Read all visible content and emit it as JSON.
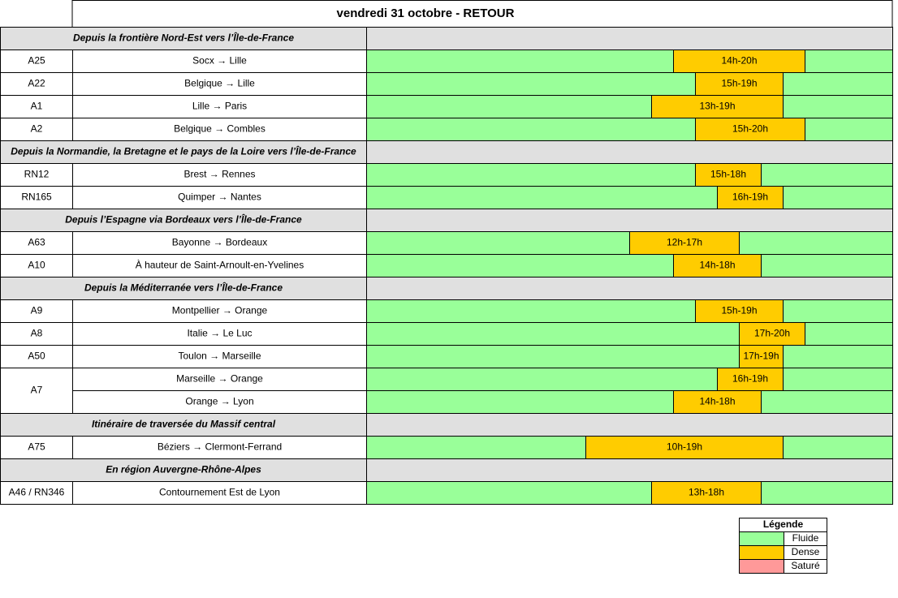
{
  "title": "vendredi 31 octobre  - RETOUR",
  "timeline": [
    0,
    24
  ],
  "sections": [
    {
      "title": "Depuis la frontière Nord-Est vers l’Île-de-France",
      "routes": [
        {
          "road": "A25",
          "stretches": [
            {
              "name": "Socx → Lille",
              "label": "14h-20h",
              "hours": [
                14,
                20
              ]
            }
          ]
        },
        {
          "road": "A22",
          "stretches": [
            {
              "name": "Belgique → Lille",
              "label": "15h-19h",
              "hours": [
                15,
                19
              ]
            }
          ]
        },
        {
          "road": "A1",
          "stretches": [
            {
              "name": "Lille → Paris",
              "label": "13h-19h",
              "hours": [
                13,
                19
              ]
            }
          ]
        },
        {
          "road": "A2",
          "stretches": [
            {
              "name": "Belgique → Combles",
              "label": "15h-20h",
              "hours": [
                15,
                20
              ]
            }
          ]
        }
      ]
    },
    {
      "title": "Depuis la Normandie, la Bretagne et le pays de la Loire vers l’Île-de-France",
      "routes": [
        {
          "road": "RN12",
          "stretches": [
            {
              "name": "Brest → Rennes",
              "label": "15h-18h",
              "hours": [
                15,
                18
              ]
            }
          ]
        },
        {
          "road": "RN165",
          "stretches": [
            {
              "name": "Quimper → Nantes",
              "label": "16h-19h",
              "hours": [
                16,
                19
              ]
            }
          ]
        }
      ]
    },
    {
      "title": "Depuis l’Espagne via Bordeaux vers l’Île-de-France",
      "routes": [
        {
          "road": "A63",
          "stretches": [
            {
              "name": "Bayonne → Bordeaux",
              "label": "12h-17h",
              "hours": [
                12,
                17
              ]
            }
          ]
        },
        {
          "road": "A10",
          "stretches": [
            {
              "name": "À hauteur de Saint-Arnoult-en-Yvelines",
              "label": "14h-18h",
              "hours": [
                14,
                18
              ]
            }
          ]
        }
      ]
    },
    {
      "title": "Depuis la Méditerranée vers l’Île-de-France",
      "routes": [
        {
          "road": "A9",
          "stretches": [
            {
              "name": "Montpellier → Orange",
              "label": "15h-19h",
              "hours": [
                15,
                19
              ]
            }
          ]
        },
        {
          "road": "A8",
          "stretches": [
            {
              "name": "Italie → Le Luc",
              "label": "17h-20h",
              "hours": [
                17,
                20
              ]
            }
          ]
        },
        {
          "road": "A50",
          "stretches": [
            {
              "name": "Toulon → Marseille",
              "label": "17h-19h",
              "hours": [
                17,
                19
              ]
            }
          ]
        },
        {
          "road": "A7",
          "stretches": [
            {
              "name": "Marseille → Orange",
              "label": "16h-19h",
              "hours": [
                16,
                19
              ]
            },
            {
              "name": "Orange → Lyon",
              "label": "14h-18h",
              "hours": [
                14,
                18
              ]
            }
          ]
        }
      ]
    },
    {
      "title": "Itinéraire de traversée du Massif central",
      "routes": [
        {
          "road": "A75",
          "stretches": [
            {
              "name": "Béziers → Clermont-Ferrand",
              "label": "10h-19h",
              "hours": [
                10,
                19
              ]
            }
          ]
        }
      ]
    },
    {
      "title": "En région Auvergne-Rhône-Alpes",
      "routes": [
        {
          "road": "A46 / RN346",
          "stretches": [
            {
              "name": "Contournement Est de Lyon",
              "label": "13h-18h",
              "hours": [
                13,
                18
              ]
            }
          ]
        }
      ]
    }
  ],
  "legend": {
    "title": "Légende",
    "items": [
      {
        "name": "Fluide",
        "color": "#99ff99"
      },
      {
        "name": "Dense",
        "color": "#ffcc00"
      },
      {
        "name": "Saturé",
        "color": "#ff9999"
      }
    ]
  }
}
